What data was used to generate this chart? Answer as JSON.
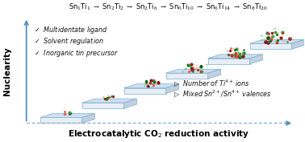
{
  "title": "Sn$_1$Ti$_1$ $\\rightarrow$ Sn$_2$Ti$_2$ $\\rightarrow$ Sn$_2$Ti$_6$ $\\rightarrow$ Sn$_6$Ti$_{10}$ $\\rightarrow$ Sn$_6$Ti$_{14}$ $\\rightarrow$ Sn$_8$Ti$_{20}$",
  "xlabel": "Electrocatalytic CO$_2$ reduction activity",
  "ylabel": "Nuclearity",
  "left_bullets": [
    "$\\checkmark$  Multidentate ligand",
    "$\\checkmark$  Solvent regulation",
    "$\\checkmark$  Inorganic tin precursor"
  ],
  "right_bullets": [
    "$\\triangleright$  Number of Ti$^{4+}$ ions",
    "$\\triangleright$  Mixed Sn$^{2+}$/Sn$^{4+}$ valences"
  ],
  "bg_color": "#ffffff",
  "step_top_color": "#d0dff0",
  "step_front_color": "#e8eef6",
  "step_side_color": "#c0d0e0",
  "step_edge_color": "#7aadcf",
  "arrow_color": "#4f8fc0",
  "dotted_color": "#7aadcf",
  "n_steps": 6,
  "title_fontsize": 6.0,
  "xlabel_fontsize": 7.5,
  "ylabel_fontsize": 7.5,
  "bullet_fontsize": 5.8
}
